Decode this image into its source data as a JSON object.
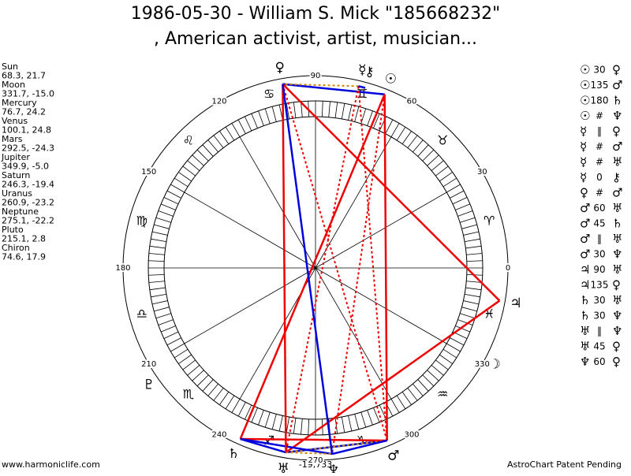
{
  "title": [
    "1986-05-30 - William S. Mick \"185668232\"",
    ", American activist, artist, musician..."
  ],
  "planets": [
    {
      "name": "Sun",
      "coords": "68.3, 21.7",
      "glyph": "☉"
    },
    {
      "name": "Moon",
      "coords": "331.7, -15.0",
      "glyph": "☽"
    },
    {
      "name": "Mercury",
      "coords": "76.7, 24.2",
      "glyph": "☿"
    },
    {
      "name": "Venus",
      "coords": "100.1, 24.8",
      "glyph": "♀"
    },
    {
      "name": "Mars",
      "coords": "292.5, -24.3",
      "glyph": "♂"
    },
    {
      "name": "Jupiter",
      "coords": "349.9, -5.0",
      "glyph": "♃"
    },
    {
      "name": "Saturn",
      "coords": "246.3, -19.4",
      "glyph": "♄"
    },
    {
      "name": "Uranus",
      "coords": "260.9, -23.2",
      "glyph": "♅"
    },
    {
      "name": "Neptune",
      "coords": "275.1, -22.2",
      "glyph": "♆"
    },
    {
      "name": "Pluto",
      "coords": "215.1, 2.8",
      "glyph": "♇"
    },
    {
      "name": "Chiron",
      "coords": "74.6, 17.9",
      "glyph": "⚷"
    }
  ],
  "signs": [
    "♈",
    "♉",
    "♊",
    "♋",
    "♌",
    "♍",
    "♎",
    "♏",
    "♐",
    "♑",
    "♒",
    "♓"
  ],
  "degrees": [
    0,
    30,
    60,
    90,
    120,
    150,
    180,
    210,
    240,
    270,
    300,
    330
  ],
  "aspects": [
    {
      "from": 0,
      "aspect": "30",
      "to": 3,
      "color": "#0000dd",
      "dashed": false
    },
    {
      "from": 0,
      "aspect": "135",
      "to": 4,
      "color": "#ee0000",
      "dashed": false
    },
    {
      "from": 0,
      "aspect": "180",
      "to": 6,
      "color": "#ee0000",
      "dashed": false
    },
    {
      "from": 0,
      "aspect": "#",
      "to": 8,
      "color": "#ee0000",
      "dashed": true
    },
    {
      "from": 2,
      "aspect": "‖",
      "to": 3,
      "color": "#cc8800",
      "dashed": true
    },
    {
      "from": 2,
      "aspect": "#",
      "to": 4,
      "color": "#ee0000",
      "dashed": true
    },
    {
      "from": 2,
      "aspect": "#",
      "to": 7,
      "color": "#ee0000",
      "dashed": true
    },
    {
      "from": 2,
      "aspect": "0",
      "to": 10,
      "color": "#0000dd",
      "dashed": false
    },
    {
      "from": 3,
      "aspect": "#",
      "to": 4,
      "color": "#ee0000",
      "dashed": true
    },
    {
      "from": 4,
      "aspect": "60",
      "to": 7,
      "color": "#0000dd",
      "dashed": false
    },
    {
      "from": 4,
      "aspect": "45",
      "to": 6,
      "color": "#ee0000",
      "dashed": false
    },
    {
      "from": 4,
      "aspect": "‖",
      "to": 7,
      "color": "#cc8800",
      "dashed": true
    },
    {
      "from": 4,
      "aspect": "30",
      "to": 8,
      "color": "#0000dd",
      "dashed": false
    },
    {
      "from": 5,
      "aspect": "90",
      "to": 7,
      "color": "#ee0000",
      "dashed": false
    },
    {
      "from": 5,
      "aspect": "135",
      "to": 3,
      "color": "#ee0000",
      "dashed": false
    },
    {
      "from": 6,
      "aspect": "30",
      "to": 7,
      "color": "#0000dd",
      "dashed": false
    },
    {
      "from": 6,
      "aspect": "30",
      "to": 8,
      "color": "#0000dd",
      "dashed": false
    },
    {
      "from": 7,
      "aspect": "‖",
      "to": 8,
      "color": "#cc8800",
      "dashed": true
    },
    {
      "from": 7,
      "aspect": "45",
      "to": 3,
      "color": "#ee0000",
      "dashed": false
    },
    {
      "from": 8,
      "aspect": "60",
      "to": 3,
      "color": "#0000dd",
      "dashed": false
    }
  ],
  "center_label": "-19,733",
  "footer": {
    "left": "www.harmoniclife.com",
    "right": "AstroChart Patent Pending"
  }
}
